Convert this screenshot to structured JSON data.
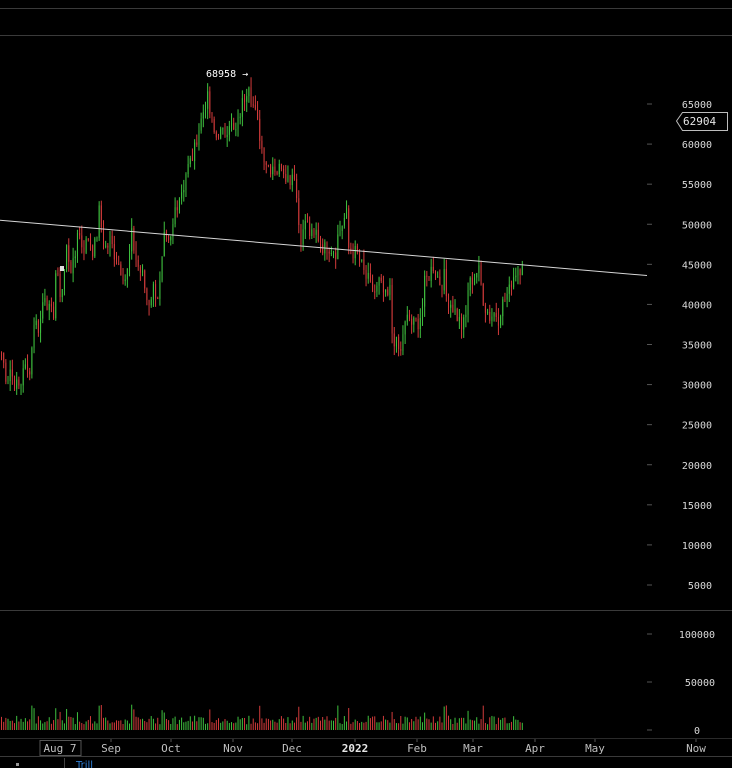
{
  "chart_data": {
    "type": "candlestick",
    "price_axis": {
      "ticks": [
        65000,
        60000,
        55000,
        50000,
        45000,
        40000,
        35000,
        30000,
        25000,
        20000,
        15000,
        10000,
        5000
      ],
      "labels": [
        "65000",
        "60000",
        "55000",
        "50000",
        "45000",
        "40000",
        "35000",
        "30000",
        "25000",
        "20000",
        "15000",
        "10000",
        "5000"
      ]
    },
    "volume_axis": {
      "ticks": [
        100000,
        50000,
        0
      ],
      "labels": [
        "100000",
        "50000",
        "0"
      ]
    },
    "time_axis": {
      "labels": [
        {
          "text": "Aug 7",
          "bold": false,
          "boxed": true
        },
        {
          "text": "Sep",
          "bold": false
        },
        {
          "text": "Oct",
          "bold": false
        },
        {
          "text": "Nov",
          "bold": false
        },
        {
          "text": "Dec",
          "bold": false
        },
        {
          "text": "2022",
          "bold": true
        },
        {
          "text": "Feb",
          "bold": false
        },
        {
          "text": "Mar",
          "bold": false
        },
        {
          "text": "Apr",
          "bold": false
        },
        {
          "text": "May",
          "bold": false
        },
        {
          "text": "Now",
          "bold": false
        }
      ]
    },
    "current_price": "62904",
    "annotations": [
      {
        "text": "68958 →",
        "value": 68958
      }
    ],
    "trendline": {
      "from_value": 50500,
      "to_value": 43600
    },
    "ohlc_anchors": [
      [
        34000,
        30500,
        33000
      ],
      [
        31000,
        29500,
        30500
      ],
      [
        32500,
        31000,
        37000
      ],
      [
        38000,
        37000,
        42500
      ],
      [
        41500,
        38500,
        39500
      ],
      [
        44000,
        41000,
        46500
      ],
      [
        47000,
        44000,
        47500
      ],
      [
        49500,
        47000,
        48000
      ],
      [
        48500,
        46500,
        50500
      ],
      [
        51500,
        47000,
        47500
      ],
      [
        48000,
        46000,
        44500
      ],
      [
        44500,
        43000,
        48500
      ],
      [
        48500,
        45000,
        43500
      ],
      [
        43500,
        40000,
        42000
      ],
      [
        42000,
        41000,
        48000
      ],
      [
        48000,
        47000,
        51500
      ],
      [
        52000,
        54000,
        55500
      ],
      [
        56500,
        58000,
        60000
      ],
      [
        61000,
        63500,
        66500
      ],
      [
        65500,
        61500,
        60500
      ],
      [
        61500,
        61000,
        63000
      ],
      [
        63000,
        61000,
        63500
      ],
      [
        64000,
        66500,
        68958
      ],
      [
        66000,
        63000,
        60000
      ],
      [
        59500,
        57500,
        57000
      ],
      [
        57500,
        56500,
        58500
      ],
      [
        57000,
        55500,
        57000
      ],
      [
        56500,
        48500,
        49000
      ],
      [
        50500,
        48500,
        48000
      ],
      [
        49000,
        47500,
        46500
      ],
      [
        47500,
        47000,
        46500
      ],
      [
        48500,
        50500,
        51500
      ],
      [
        47000,
        46500,
        46000
      ],
      [
        45500,
        43500,
        42500
      ],
      [
        42000,
        41500,
        43500
      ],
      [
        42000,
        40500,
        42500
      ],
      [
        36500,
        34500,
        33500
      ],
      [
        36500,
        38500,
        37000
      ],
      [
        37500,
        38000,
        41000
      ],
      [
        42500,
        44000,
        45500
      ],
      [
        44000,
        42500,
        44000
      ],
      [
        41000,
        40000,
        38500
      ],
      [
        38500,
        37000,
        39500
      ],
      [
        42000,
        43500,
        44500
      ],
      [
        44000,
        40000,
        38500
      ],
      [
        38500,
        39000,
        38000
      ],
      [
        39500,
        41000,
        42000
      ],
      [
        43000,
        44500,
        44800
      ]
    ]
  }
}
